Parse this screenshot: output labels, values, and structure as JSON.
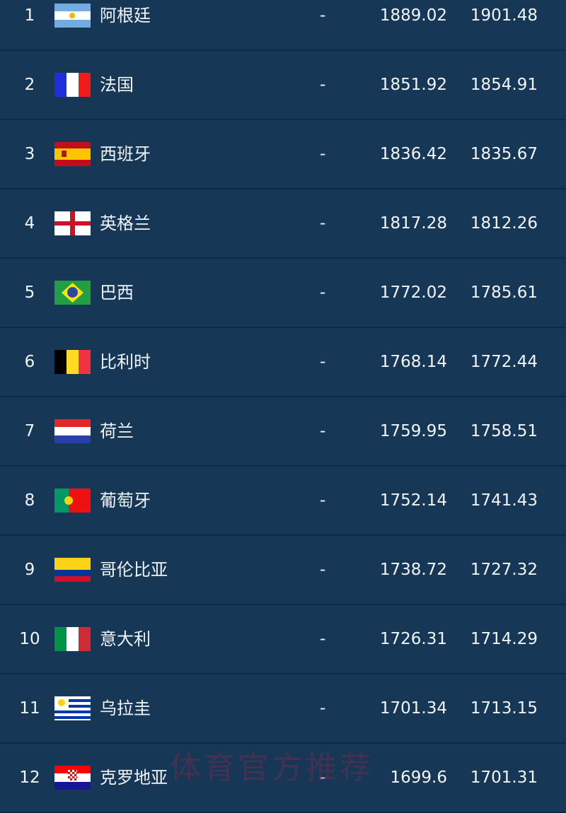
{
  "rows": [
    {
      "rank": "1",
      "flag": "argentina-flag",
      "name": "阿根廷",
      "change": "-",
      "previous_points": "1889.02",
      "points": "1901.48"
    },
    {
      "rank": "2",
      "flag": "france-flag",
      "name": "法国",
      "change": "-",
      "previous_points": "1851.92",
      "points": "1854.91"
    },
    {
      "rank": "3",
      "flag": "spain-flag",
      "name": "西班牙",
      "change": "-",
      "previous_points": "1836.42",
      "points": "1835.67"
    },
    {
      "rank": "4",
      "flag": "england-flag",
      "name": "英格兰",
      "change": "-",
      "previous_points": "1817.28",
      "points": "1812.26"
    },
    {
      "rank": "5",
      "flag": "brazil-flag",
      "name": "巴西",
      "change": "-",
      "previous_points": "1772.02",
      "points": "1785.61"
    },
    {
      "rank": "6",
      "flag": "belgium-flag",
      "name": "比利时",
      "change": "-",
      "previous_points": "1768.14",
      "points": "1772.44"
    },
    {
      "rank": "7",
      "flag": "netherlands-flag",
      "name": "荷兰",
      "change": "-",
      "previous_points": "1759.95",
      "points": "1758.51"
    },
    {
      "rank": "8",
      "flag": "portugal-flag",
      "name": "葡萄牙",
      "change": "-",
      "previous_points": "1752.14",
      "points": "1741.43"
    },
    {
      "rank": "9",
      "flag": "colombia-flag",
      "name": "哥伦比亚",
      "change": "-",
      "previous_points": "1738.72",
      "points": "1727.32"
    },
    {
      "rank": "10",
      "flag": "italy-flag",
      "name": "意大利",
      "change": "-",
      "previous_points": "1726.31",
      "points": "1714.29"
    },
    {
      "rank": "11",
      "flag": "uruguay-flag",
      "name": "乌拉圭",
      "change": "-",
      "previous_points": "1701.34",
      "points": "1713.15"
    },
    {
      "rank": "12",
      "flag": "croatia-flag",
      "name": "克罗地亚",
      "change": "-",
      "previous_points": "1699.6",
      "points": "1701.31"
    }
  ],
  "watermark": "体育官方推荐",
  "colors": {
    "background": "#173757",
    "divider": "#0f2a45",
    "text": "#f2f5f8"
  }
}
